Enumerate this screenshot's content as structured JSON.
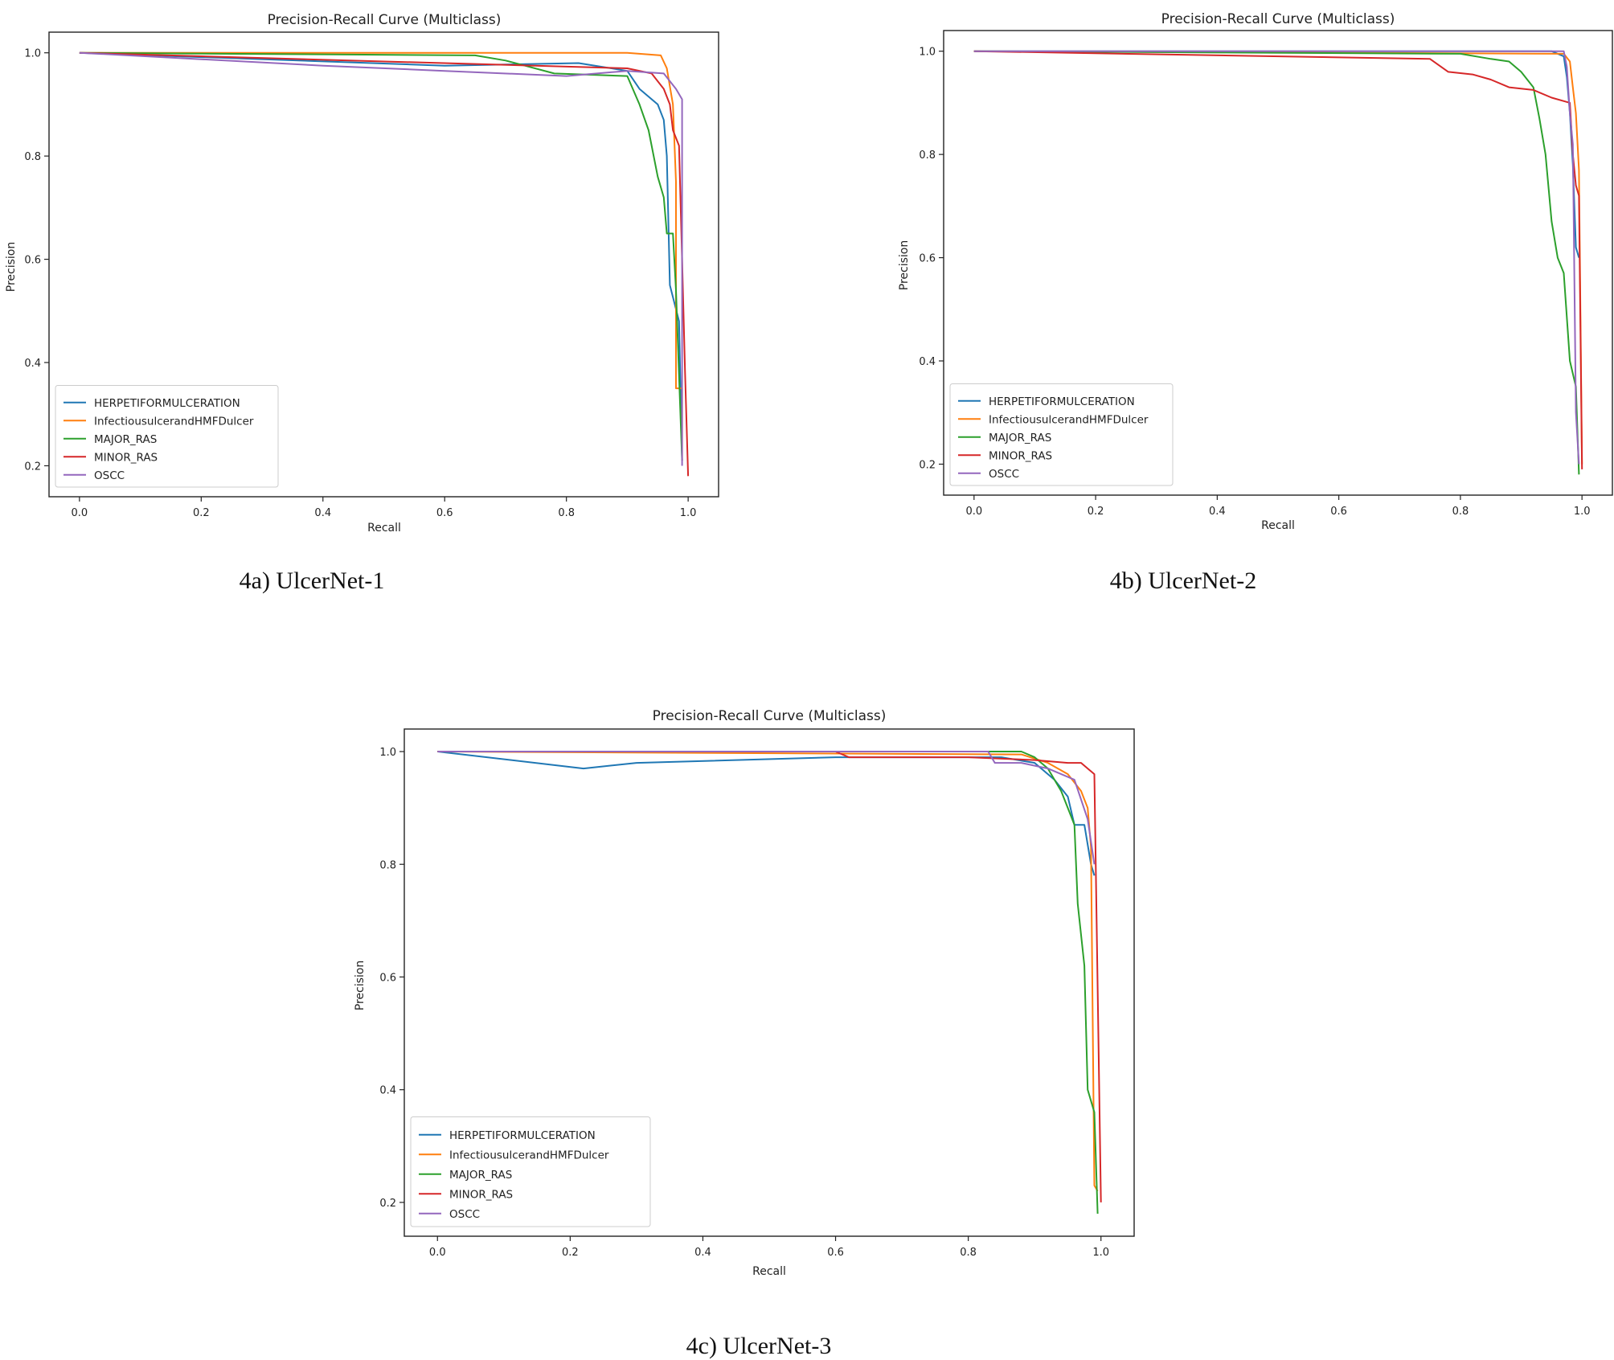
{
  "chart_data": [
    {
      "type": "line",
      "id": "c1",
      "title": "Precision-Recall Curve (Multiclass)",
      "caption": "4a) UlcerNet-1",
      "xlabel": "Recall",
      "ylabel": "Precision",
      "xlim": [
        -0.05,
        1.05
      ],
      "ylim": [
        0.14,
        1.04
      ],
      "xticks": [
        "0.0",
        "0.2",
        "0.4",
        "0.6",
        "0.8",
        "1.0"
      ],
      "yticks": [
        "0.2",
        "0.4",
        "0.6",
        "0.8",
        "1.0"
      ],
      "legend_position": "lower-left",
      "series": [
        {
          "name": "HERPETIFORMULCERATION",
          "color": "#1f77b4",
          "points": [
            [
              0,
              1.0
            ],
            [
              0.6,
              0.975
            ],
            [
              0.82,
              0.98
            ],
            [
              0.9,
              0.965
            ],
            [
              0.92,
              0.93
            ],
            [
              0.95,
              0.9
            ],
            [
              0.96,
              0.87
            ],
            [
              0.965,
              0.8
            ],
            [
              0.97,
              0.55
            ],
            [
              0.985,
              0.48
            ],
            [
              0.99,
              0.21
            ]
          ]
        },
        {
          "name": "InfectiousulcerandHMFDulcer",
          "color": "#ff7f0e",
          "points": [
            [
              0,
              1.0
            ],
            [
              0.9,
              1.0
            ],
            [
              0.955,
              0.995
            ],
            [
              0.965,
              0.97
            ],
            [
              0.975,
              0.9
            ],
            [
              0.98,
              0.75
            ],
            [
              0.98,
              0.35
            ],
            [
              0.99,
              0.35
            ],
            [
              0.99,
              0.21
            ]
          ]
        },
        {
          "name": "MAJOR_RAS",
          "color": "#2ca02c",
          "points": [
            [
              0,
              1.0
            ],
            [
              0.65,
              0.995
            ],
            [
              0.7,
              0.985
            ],
            [
              0.78,
              0.96
            ],
            [
              0.9,
              0.955
            ],
            [
              0.92,
              0.9
            ],
            [
              0.935,
              0.85
            ],
            [
              0.95,
              0.76
            ],
            [
              0.96,
              0.72
            ],
            [
              0.965,
              0.65
            ],
            [
              0.975,
              0.65
            ],
            [
              0.98,
              0.54
            ],
            [
              0.99,
              0.21
            ]
          ]
        },
        {
          "name": "MINOR_RAS",
          "color": "#d62728",
          "points": [
            [
              0,
              1.0
            ],
            [
              0.9,
              0.97
            ],
            [
              0.94,
              0.96
            ],
            [
              0.96,
              0.93
            ],
            [
              0.97,
              0.9
            ],
            [
              0.975,
              0.85
            ],
            [
              0.985,
              0.82
            ],
            [
              0.99,
              0.6
            ],
            [
              0.995,
              0.38
            ],
            [
              1.0,
              0.18
            ]
          ]
        },
        {
          "name": "OSCC",
          "color": "#9467bd",
          "points": [
            [
              0,
              1.0
            ],
            [
              0.4,
              0.975
            ],
            [
              0.6,
              0.965
            ],
            [
              0.8,
              0.955
            ],
            [
              0.9,
              0.965
            ],
            [
              0.96,
              0.96
            ],
            [
              0.98,
              0.93
            ],
            [
              0.99,
              0.91
            ],
            [
              0.99,
              0.2
            ]
          ]
        }
      ]
    },
    {
      "type": "line",
      "id": "c2",
      "title": "Precision-Recall Curve (Multiclass)",
      "caption": "4b) UlcerNet-2",
      "xlabel": "Recall",
      "ylabel": "Precision",
      "xlim": [
        -0.05,
        1.05
      ],
      "ylim": [
        0.14,
        1.04
      ],
      "xticks": [
        "0.0",
        "0.2",
        "0.4",
        "0.6",
        "0.8",
        "1.0"
      ],
      "yticks": [
        "0.2",
        "0.4",
        "0.6",
        "0.8",
        "1.0"
      ],
      "legend_position": "lower-left",
      "series": [
        {
          "name": "HERPETIFORMULCERATION",
          "color": "#1f77b4",
          "points": [
            [
              0,
              1.0
            ],
            [
              0.95,
              1.0
            ],
            [
              0.97,
              0.99
            ],
            [
              0.975,
              0.95
            ],
            [
              0.98,
              0.88
            ],
            [
              0.985,
              0.78
            ],
            [
              0.99,
              0.62
            ],
            [
              0.995,
              0.6
            ]
          ]
        },
        {
          "name": "InfectiousulcerandHMFDulcer",
          "color": "#ff7f0e",
          "points": [
            [
              0,
              1.0
            ],
            [
              0.97,
              0.995
            ],
            [
              0.98,
              0.98
            ],
            [
              0.985,
              0.93
            ],
            [
              0.99,
              0.88
            ],
            [
              0.995,
              0.77
            ],
            [
              1.0,
              0.2
            ]
          ]
        },
        {
          "name": "MAJOR_RAS",
          "color": "#2ca02c",
          "points": [
            [
              0,
              1.0
            ],
            [
              0.8,
              0.995
            ],
            [
              0.85,
              0.985
            ],
            [
              0.88,
              0.98
            ],
            [
              0.9,
              0.96
            ],
            [
              0.92,
              0.93
            ],
            [
              0.93,
              0.87
            ],
            [
              0.94,
              0.8
            ],
            [
              0.95,
              0.67
            ],
            [
              0.96,
              0.6
            ],
            [
              0.97,
              0.57
            ],
            [
              0.98,
              0.4
            ],
            [
              0.99,
              0.35
            ],
            [
              0.995,
              0.18
            ]
          ]
        },
        {
          "name": "MINOR_RAS",
          "color": "#d62728",
          "points": [
            [
              0,
              1.0
            ],
            [
              0.75,
              0.985
            ],
            [
              0.78,
              0.96
            ],
            [
              0.82,
              0.955
            ],
            [
              0.85,
              0.945
            ],
            [
              0.88,
              0.93
            ],
            [
              0.92,
              0.925
            ],
            [
              0.95,
              0.91
            ],
            [
              0.98,
              0.9
            ],
            [
              0.985,
              0.8
            ],
            [
              0.99,
              0.74
            ],
            [
              0.995,
              0.72
            ],
            [
              1.0,
              0.19
            ]
          ]
        },
        {
          "name": "OSCC",
          "color": "#9467bd",
          "points": [
            [
              0,
              1.0
            ],
            [
              0.97,
              1.0
            ],
            [
              0.975,
              0.97
            ],
            [
              0.98,
              0.88
            ],
            [
              0.985,
              0.82
            ],
            [
              0.99,
              0.3
            ],
            [
              0.995,
              0.2
            ]
          ]
        }
      ]
    },
    {
      "type": "line",
      "id": "c3",
      "title": "Precision-Recall Curve (Multiclass)",
      "caption": "4c) UlcerNet-3",
      "xlabel": "Recall",
      "ylabel": "Precision",
      "xlim": [
        -0.05,
        1.05
      ],
      "ylim": [
        0.14,
        1.04
      ],
      "xticks": [
        "0.0",
        "0.2",
        "0.4",
        "0.6",
        "0.8",
        "1.0"
      ],
      "yticks": [
        "0.2",
        "0.4",
        "0.6",
        "0.8",
        "1.0"
      ],
      "legend_position": "lower-left",
      "series": [
        {
          "name": "HERPETIFORMULCERATION",
          "color": "#1f77b4",
          "points": [
            [
              0,
              1.0
            ],
            [
              0.22,
              0.97
            ],
            [
              0.3,
              0.98
            ],
            [
              0.6,
              0.99
            ],
            [
              0.85,
              0.99
            ],
            [
              0.9,
              0.98
            ],
            [
              0.93,
              0.95
            ],
            [
              0.95,
              0.92
            ],
            [
              0.96,
              0.87
            ],
            [
              0.975,
              0.87
            ],
            [
              0.985,
              0.8
            ],
            [
              0.99,
              0.78
            ]
          ]
        },
        {
          "name": "InfectiousulcerandHMFDulcer",
          "color": "#ff7f0e",
          "points": [
            [
              0,
              1.0
            ],
            [
              0.88,
              0.995
            ],
            [
              0.92,
              0.98
            ],
            [
              0.95,
              0.96
            ],
            [
              0.97,
              0.93
            ],
            [
              0.98,
              0.9
            ],
            [
              0.985,
              0.83
            ],
            [
              0.99,
              0.23
            ],
            [
              0.995,
              0.22
            ]
          ]
        },
        {
          "name": "MAJOR_RAS",
          "color": "#2ca02c",
          "points": [
            [
              0,
              1.0
            ],
            [
              0.88,
              1.0
            ],
            [
              0.9,
              0.99
            ],
            [
              0.92,
              0.97
            ],
            [
              0.93,
              0.95
            ],
            [
              0.94,
              0.93
            ],
            [
              0.95,
              0.9
            ],
            [
              0.96,
              0.87
            ],
            [
              0.965,
              0.73
            ],
            [
              0.975,
              0.62
            ],
            [
              0.98,
              0.4
            ],
            [
              0.99,
              0.36
            ],
            [
              0.995,
              0.18
            ]
          ]
        },
        {
          "name": "MINOR_RAS",
          "color": "#d62728",
          "points": [
            [
              0,
              1.0
            ],
            [
              0.6,
              1.0
            ],
            [
              0.62,
              0.99
            ],
            [
              0.8,
              0.99
            ],
            [
              0.9,
              0.985
            ],
            [
              0.95,
              0.98
            ],
            [
              0.97,
              0.98
            ],
            [
              0.98,
              0.97
            ],
            [
              0.99,
              0.96
            ],
            [
              1.0,
              0.2
            ]
          ]
        },
        {
          "name": "OSCC",
          "color": "#9467bd",
          "points": [
            [
              0,
              1.0
            ],
            [
              0.83,
              1.0
            ],
            [
              0.84,
              0.98
            ],
            [
              0.88,
              0.98
            ],
            [
              0.92,
              0.97
            ],
            [
              0.96,
              0.95
            ],
            [
              0.98,
              0.88
            ],
            [
              0.99,
              0.8
            ]
          ]
        }
      ]
    }
  ]
}
